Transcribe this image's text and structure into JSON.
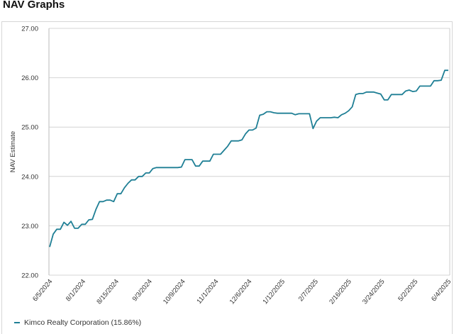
{
  "header": {
    "title": "NAV Graphs"
  },
  "chart_data": {
    "type": "line",
    "title": "",
    "xlabel": "",
    "ylabel": "NAV Estimate",
    "ylim": [
      22,
      27
    ],
    "yticks": [
      "22.00",
      "23.00",
      "24.00",
      "25.00",
      "26.00",
      "27.00"
    ],
    "xticks": [
      "6/5/2024",
      "8/1/2024",
      "8/15/2024",
      "9/3/2024",
      "10/9/2024",
      "11/1/2024",
      "12/6/2024",
      "1/12/2025",
      "2/7/2025",
      "2/16/2025",
      "3/24/2025",
      "5/2/2025",
      "6/4/2025"
    ],
    "grid": true,
    "legend_position": "bottom-left",
    "series": [
      {
        "name": "Kimco Realty Corporation (15.86%)",
        "color": "#1f7f95",
        "values": [
          22.57,
          22.83,
          22.93,
          22.93,
          23.07,
          23.01,
          23.09,
          22.95,
          22.95,
          23.03,
          23.03,
          23.12,
          23.13,
          23.33,
          23.49,
          23.49,
          23.52,
          23.52,
          23.49,
          23.65,
          23.65,
          23.77,
          23.86,
          23.93,
          23.93,
          24.0,
          24.0,
          24.07,
          24.07,
          24.16,
          24.18,
          24.18,
          24.18,
          24.18,
          24.18,
          24.18,
          24.18,
          24.19,
          24.34,
          24.34,
          24.34,
          24.21,
          24.21,
          24.31,
          24.31,
          24.31,
          24.45,
          24.45,
          24.45,
          24.53,
          24.61,
          24.72,
          24.72,
          24.72,
          24.74,
          24.86,
          24.94,
          24.94,
          24.98,
          25.24,
          25.26,
          25.31,
          25.31,
          25.29,
          25.28,
          25.28,
          25.28,
          25.28,
          25.28,
          25.25,
          25.27,
          25.27,
          25.27,
          25.27,
          24.97,
          25.12,
          25.19,
          25.19,
          25.19,
          25.19,
          25.2,
          25.19,
          25.25,
          25.28,
          25.33,
          25.41,
          25.66,
          25.68,
          25.68,
          25.71,
          25.71,
          25.71,
          25.69,
          25.67,
          25.55,
          25.55,
          25.66,
          25.66,
          25.66,
          25.66,
          25.73,
          25.75,
          25.72,
          25.73,
          25.83,
          25.83,
          25.83,
          25.83,
          25.94,
          25.94,
          25.95,
          26.15,
          26.15
        ]
      }
    ]
  }
}
